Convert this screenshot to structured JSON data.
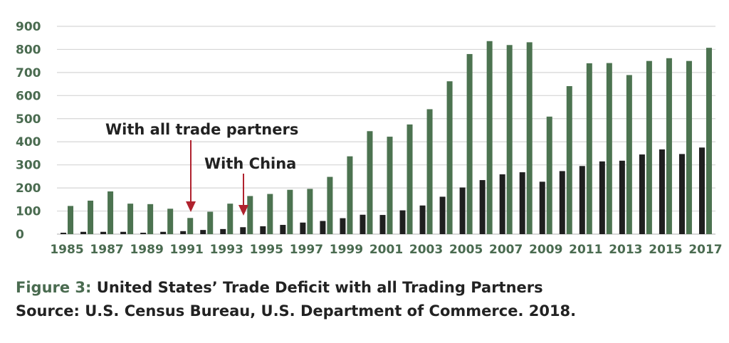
{
  "chart_data": {
    "type": "bar",
    "title": "",
    "xlabel": "",
    "ylabel": "",
    "ylim": [
      0,
      900
    ],
    "yticks": [
      0,
      100,
      200,
      300,
      400,
      500,
      600,
      700,
      800,
      900
    ],
    "grid": true,
    "legend": "none",
    "categories": [
      "1985",
      "1986",
      "1987",
      "1988",
      "1989",
      "1990",
      "1991",
      "1992",
      "1993",
      "1994",
      "1995",
      "1996",
      "1997",
      "1998",
      "1999",
      "2000",
      "2001",
      "2002",
      "2003",
      "2004",
      "2005",
      "2006",
      "2007",
      "2008",
      "2009",
      "2010",
      "2011",
      "2012",
      "2013",
      "2014",
      "2015",
      "2016",
      "2017"
    ],
    "tick_labels": [
      "1985",
      "1987",
      "1989",
      "1991",
      "1993",
      "1995",
      "1997",
      "1999",
      "2001",
      "2003",
      "2005",
      "2007",
      "2009",
      "2011",
      "2013",
      "2015",
      "2017"
    ],
    "series": [
      {
        "values": [
          6,
          10,
          10,
          10,
          6,
          10,
          13,
          18,
          22,
          30,
          34,
          40,
          50,
          57,
          69,
          84,
          83,
          103,
          124,
          162,
          202,
          234,
          259,
          268,
          227,
          273,
          295,
          315,
          318,
          345,
          367,
          347,
          375
        ],
        "color": "#1f1f1f"
      },
      {
        "values": [
          122,
          145,
          185,
          132,
          130,
          110,
          70,
          97,
          132,
          165,
          174,
          192,
          196,
          248,
          337,
          446,
          422,
          475,
          541,
          662,
          780,
          836,
          819,
          831,
          509,
          641,
          740,
          741,
          689,
          750,
          762,
          750,
          807
        ],
        "color": "#4c7350"
      }
    ],
    "annotations": [
      {
        "text": "With all trade partners",
        "points_to": "1991"
      },
      {
        "text": "With China",
        "points_to": "1994"
      }
    ],
    "colors": {
      "grid": "#d6d6d6",
      "arrow": "#b0222e",
      "axis_text": "#4a6b50"
    }
  },
  "caption": {
    "figure_label": "Figure 3:",
    "title": "United States’ Trade Deficit with all Trading Partners",
    "source": "Source: U.S. Census Bureau, U.S. Department of Commerce. 2018."
  }
}
